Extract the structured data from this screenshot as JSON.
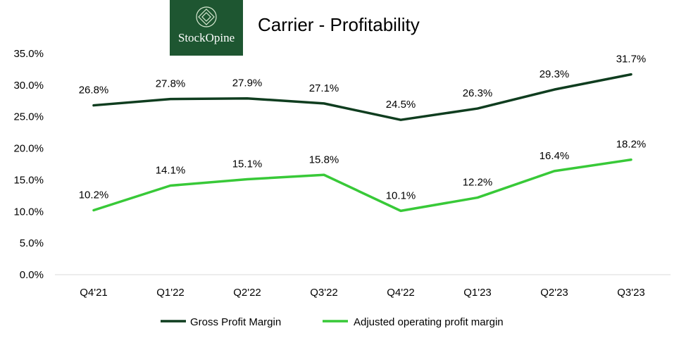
{
  "logo": {
    "text": "StockOpine",
    "background": "#1e5631"
  },
  "chart_data": {
    "type": "line",
    "title": "Carrier - Profitability",
    "categories": [
      "Q4'21",
      "Q1'22",
      "Q2'22",
      "Q3'22",
      "Q4'22",
      "Q1'23",
      "Q2'23",
      "Q3'23"
    ],
    "series": [
      {
        "name": "Gross Profit Margin",
        "color": "#0f3d1f",
        "values": [
          26.8,
          27.8,
          27.9,
          27.1,
          24.5,
          26.3,
          29.3,
          31.7
        ],
        "labels": [
          "26.8%",
          "27.8%",
          "27.9%",
          "27.1%",
          "24.5%",
          "26.3%",
          "29.3%",
          "31.7%"
        ]
      },
      {
        "name": "Adjusted operating profit margin",
        "color": "#38c938",
        "values": [
          10.2,
          14.1,
          15.1,
          15.8,
          10.1,
          12.2,
          16.4,
          18.2
        ],
        "labels": [
          "10.2%",
          "14.1%",
          "15.1%",
          "15.8%",
          "10.1%",
          "12.2%",
          "16.4%",
          "18.2%"
        ]
      }
    ],
    "yticks": [
      "0.0%",
      "5.0%",
      "10.0%",
      "15.0%",
      "20.0%",
      "25.0%",
      "30.0%",
      "35.0%"
    ],
    "ylim": [
      0,
      35
    ],
    "grid": false,
    "legend": "bottom-center"
  }
}
